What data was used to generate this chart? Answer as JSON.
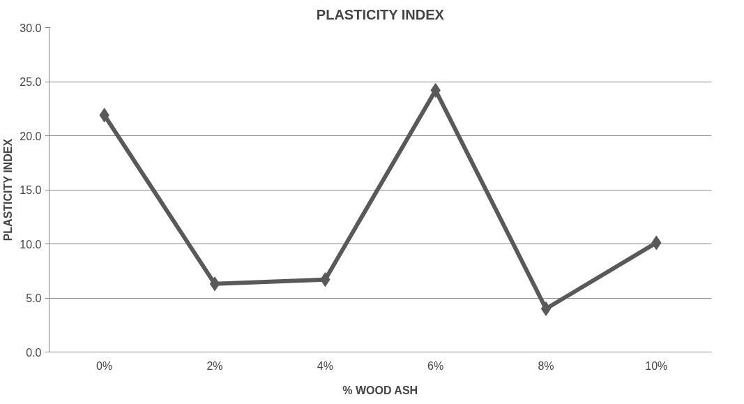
{
  "chart_data": {
    "type": "line",
    "title": "PLASTICITY INDEX",
    "xlabel": "% WOOD ASH",
    "ylabel": "PLASTICITY INDEX",
    "categories": [
      "0%",
      "2%",
      "4%",
      "6%",
      "8%",
      "10%"
    ],
    "series": [
      {
        "color": "#595959",
        "values": [
          21.9,
          6.3,
          6.7,
          24.2,
          4.0,
          10.1
        ]
      }
    ],
    "ylim": [
      0,
      30
    ],
    "yticks": [
      {
        "value": 0,
        "label": "0.0"
      },
      {
        "value": 5,
        "label": "5.0"
      },
      {
        "value": 10,
        "label": "10.0"
      },
      {
        "value": 15,
        "label": "15.0"
      },
      {
        "value": 20,
        "label": "20.0"
      },
      {
        "value": 25,
        "label": "25.0"
      },
      {
        "value": 30,
        "label": "30.0"
      }
    ],
    "grid": "y",
    "marker": "diamond",
    "line_style": "solid"
  }
}
